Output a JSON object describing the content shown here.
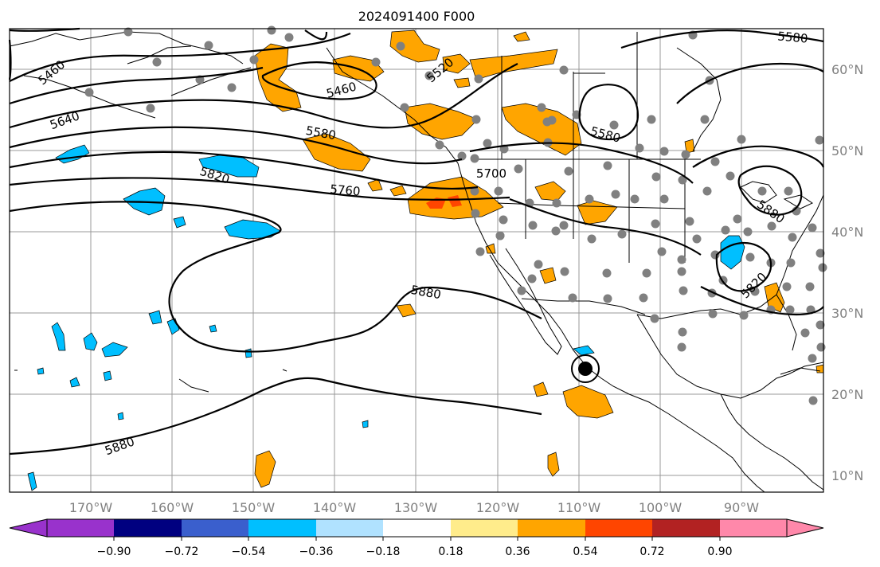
{
  "map": {
    "title": "2024091400 F000",
    "longitude_labels": [
      "170°W",
      "160°W",
      "150°W",
      "140°W",
      "130°W",
      "120°W",
      "110°W",
      "100°W",
      "90°W"
    ],
    "latitude_labels": [
      "60°N",
      "50°N",
      "40°N",
      "30°N",
      "20°N",
      "10°N"
    ],
    "contour_labels": [
      "5460",
      "5640",
      "5580",
      "5820",
      "5760",
      "5700",
      "5880",
      "5580",
      "5460",
      "5520",
      "5580",
      "5880",
      "5820",
      "5880"
    ],
    "storm_marker": "tropical-storm-center",
    "colorbar": {
      "tick_labels": [
        "−0.90",
        "−0.72",
        "−0.54",
        "−0.36",
        "−0.18",
        "0.18",
        "0.36",
        "0.54",
        "0.72",
        "0.90"
      ],
      "colors": [
        "#9932CC",
        "#000080",
        "#3A5FCD",
        "#00BFFF",
        "#B0E2FF",
        "#FFFFFF",
        "#FFEC8B",
        "#FFA500",
        "#FF4500",
        "#B22222",
        "#FF88AA"
      ]
    },
    "colors": {
      "positive_anomaly": "#FFA500",
      "strong_positive": "#FF4500",
      "negative_anomaly": "#00BFFF",
      "stations": "#808080",
      "contours": "#000000"
    }
  }
}
